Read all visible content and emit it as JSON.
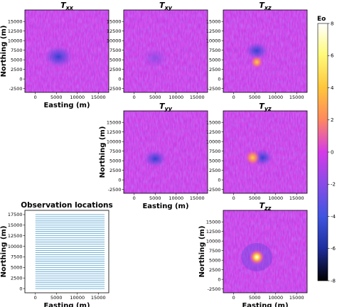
{
  "chart_data": [
    {
      "type": "heatmap",
      "id": "Txx",
      "title": "T",
      "title_sub": "xx",
      "xlabel": "Easting (m)",
      "ylabel": "Northing (m)",
      "xticks": [
        "0",
        "5000",
        "10000",
        "15000"
      ],
      "yticks": [
        "15000",
        "12500",
        "10000",
        "7500",
        "5000",
        "2500",
        "0",
        "-2500"
      ],
      "xlim": [
        -2500,
        17500
      ],
      "ylim": [
        -3500,
        18000
      ],
      "anomaly": {
        "x": 5500,
        "y": 5800,
        "sign": "negative",
        "peak_eo": -3.5
      }
    },
    {
      "type": "heatmap",
      "id": "Txy",
      "title": "T",
      "title_sub": "xy",
      "xlabel": "",
      "ylabel": "",
      "xticks": [
        "0",
        "5000",
        "10000",
        "15000"
      ],
      "yticks": [
        "15000",
        "12500",
        "10000",
        "7500",
        "5000",
        "2500",
        "0",
        "-2500"
      ],
      "xlim": [
        -2500,
        17500
      ],
      "ylim": [
        -3500,
        18000
      ],
      "anomaly": {
        "x": 5000,
        "y": 5500,
        "sign": "weak",
        "peak_eo": -1.0
      }
    },
    {
      "type": "heatmap",
      "id": "Txz",
      "title": "T",
      "title_sub": "xz",
      "xlabel": "",
      "ylabel": "",
      "xticks": [
        "0",
        "5000",
        "10000",
        "15000"
      ],
      "yticks": [
        "15000",
        "12500",
        "10000",
        "7500",
        "5000",
        "2500",
        "0",
        "-2500"
      ],
      "xlim": [
        -2500,
        17500
      ],
      "ylim": [
        -3500,
        18000
      ],
      "anomaly": {
        "x": 5500,
        "y": 5500,
        "sign": "dipole",
        "peak_eo": 4.5
      }
    },
    {
      "type": "heatmap",
      "id": "Tyy",
      "title": "T",
      "title_sub": "yy",
      "xlabel": "Easting (m)",
      "ylabel": "Northing (m)",
      "xticks": [
        "0",
        "5000",
        "10000",
        "15000"
      ],
      "yticks": [
        "15000",
        "12500",
        "10000",
        "7500",
        "5000",
        "2500",
        "0",
        "-2500"
      ],
      "xlim": [
        -2500,
        17500
      ],
      "ylim": [
        -3500,
        18000
      ],
      "anomaly": {
        "x": 5000,
        "y": 5500,
        "sign": "negative",
        "peak_eo": -2.5
      }
    },
    {
      "type": "heatmap",
      "id": "Tyz",
      "title": "T",
      "title_sub": "yz",
      "xlabel": "",
      "ylabel": "",
      "xticks": [
        "0",
        "5000",
        "10000",
        "15000"
      ],
      "yticks": [
        "15000",
        "12500",
        "10000",
        "7500",
        "5000",
        "2500",
        "0",
        "-2500"
      ],
      "xlim": [
        -2500,
        17500
      ],
      "ylim": [
        -3500,
        18000
      ],
      "anomaly": {
        "x": 5200,
        "y": 5800,
        "sign": "dipole",
        "peak_eo": 5.5
      }
    },
    {
      "type": "heatmap",
      "id": "Tzz",
      "title": "T",
      "title_sub": "zz",
      "xlabel": "Easting (m)",
      "ylabel": "Northing (m)",
      "xticks": [
        "0",
        "5000",
        "10000",
        "15000"
      ],
      "yticks": [
        "15000",
        "12500",
        "10000",
        "7500",
        "5000",
        "2500",
        "0",
        "-2500"
      ],
      "xlim": [
        -2500,
        17500
      ],
      "ylim": [
        -3500,
        18000
      ],
      "anomaly": {
        "x": 5500,
        "y": 5800,
        "sign": "positive",
        "peak_eo": 8
      }
    },
    {
      "type": "line",
      "id": "obs",
      "title": "Observation locations",
      "xlabel": "Easting (m)",
      "ylabel": "Northing (m)",
      "xticks": [
        "0",
        "5000",
        "10000",
        "15000"
      ],
      "yticks": [
        "17500",
        "15000",
        "12500",
        "10000",
        "7500",
        "5000",
        "2500",
        "0"
      ],
      "xlim": [
        -2500,
        17500
      ],
      "ylim": [
        -1000,
        18500
      ],
      "line_x_range": [
        0,
        16500
      ],
      "line_y_start": 0,
      "line_y_end": 17500,
      "line_count": 36,
      "line_color": "#5fa8d3"
    }
  ],
  "colorbar": {
    "label": "Eo",
    "ticks": [
      "8",
      "6",
      "4",
      "2",
      "0",
      "-2",
      "-4",
      "-6",
      "-8"
    ],
    "min": -8,
    "max": 8
  }
}
